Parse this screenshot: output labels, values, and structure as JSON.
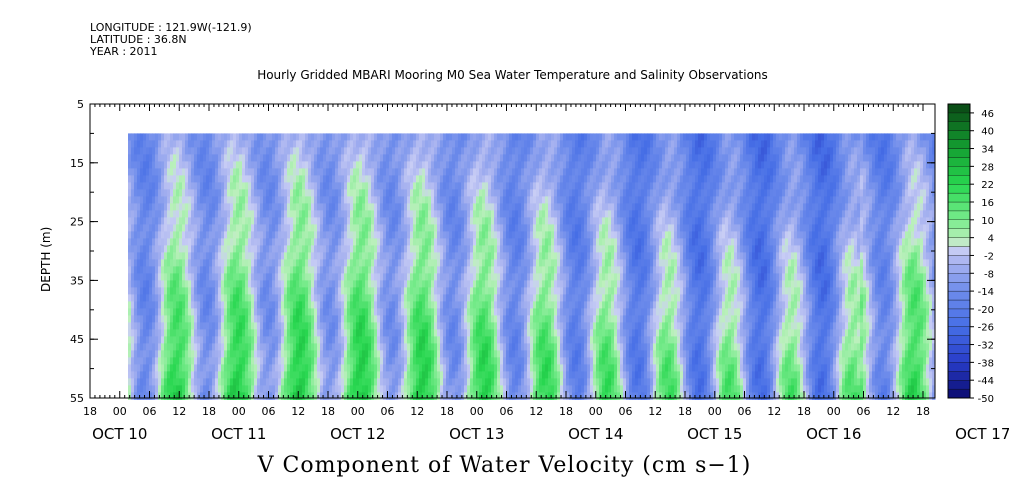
{
  "header": {
    "longitude": "LONGITUDE : 121.9W(-121.9)",
    "latitude": "LATITUDE : 36.8N",
    "year": "YEAR : 2011"
  },
  "chart_data": {
    "type": "heatmap",
    "title": "Hourly Gridded MBARI Mooring M0 Sea Water Temperature and Salinity Observations",
    "xlabel": "",
    "ylabel": "DEPTH (m)",
    "variable_label": "V Component of Water Velocity (cm s−1)",
    "y_ticks": [
      "5",
      "15",
      "25",
      "35",
      "45",
      "55"
    ],
    "ylim": [
      5,
      55
    ],
    "y_reversed": true,
    "x_hour_ticks": [
      "18",
      "00",
      "06",
      "12",
      "18",
      "00",
      "06",
      "12",
      "18",
      "00",
      "06",
      "12",
      "18",
      "00",
      "06",
      "12",
      "18",
      "00",
      "06",
      "12",
      "18",
      "00",
      "06",
      "12",
      "18",
      "00",
      "06",
      "12",
      "18"
    ],
    "x_day_labels": [
      "OCT 10",
      "OCT 11",
      "OCT 12",
      "OCT 13",
      "OCT 14",
      "OCT 15",
      "OCT 16",
      "OCT 17"
    ],
    "data_depth_range": [
      10,
      55
    ],
    "colorbar_ticks": [
      "46",
      "40",
      "34",
      "28",
      "22",
      "16",
      "10",
      "4",
      "-2",
      "-8",
      "-14",
      "-20",
      "-26",
      "-32",
      "-38",
      "-44",
      "-50"
    ],
    "colorbar_range": [
      -50,
      49
    ]
  }
}
